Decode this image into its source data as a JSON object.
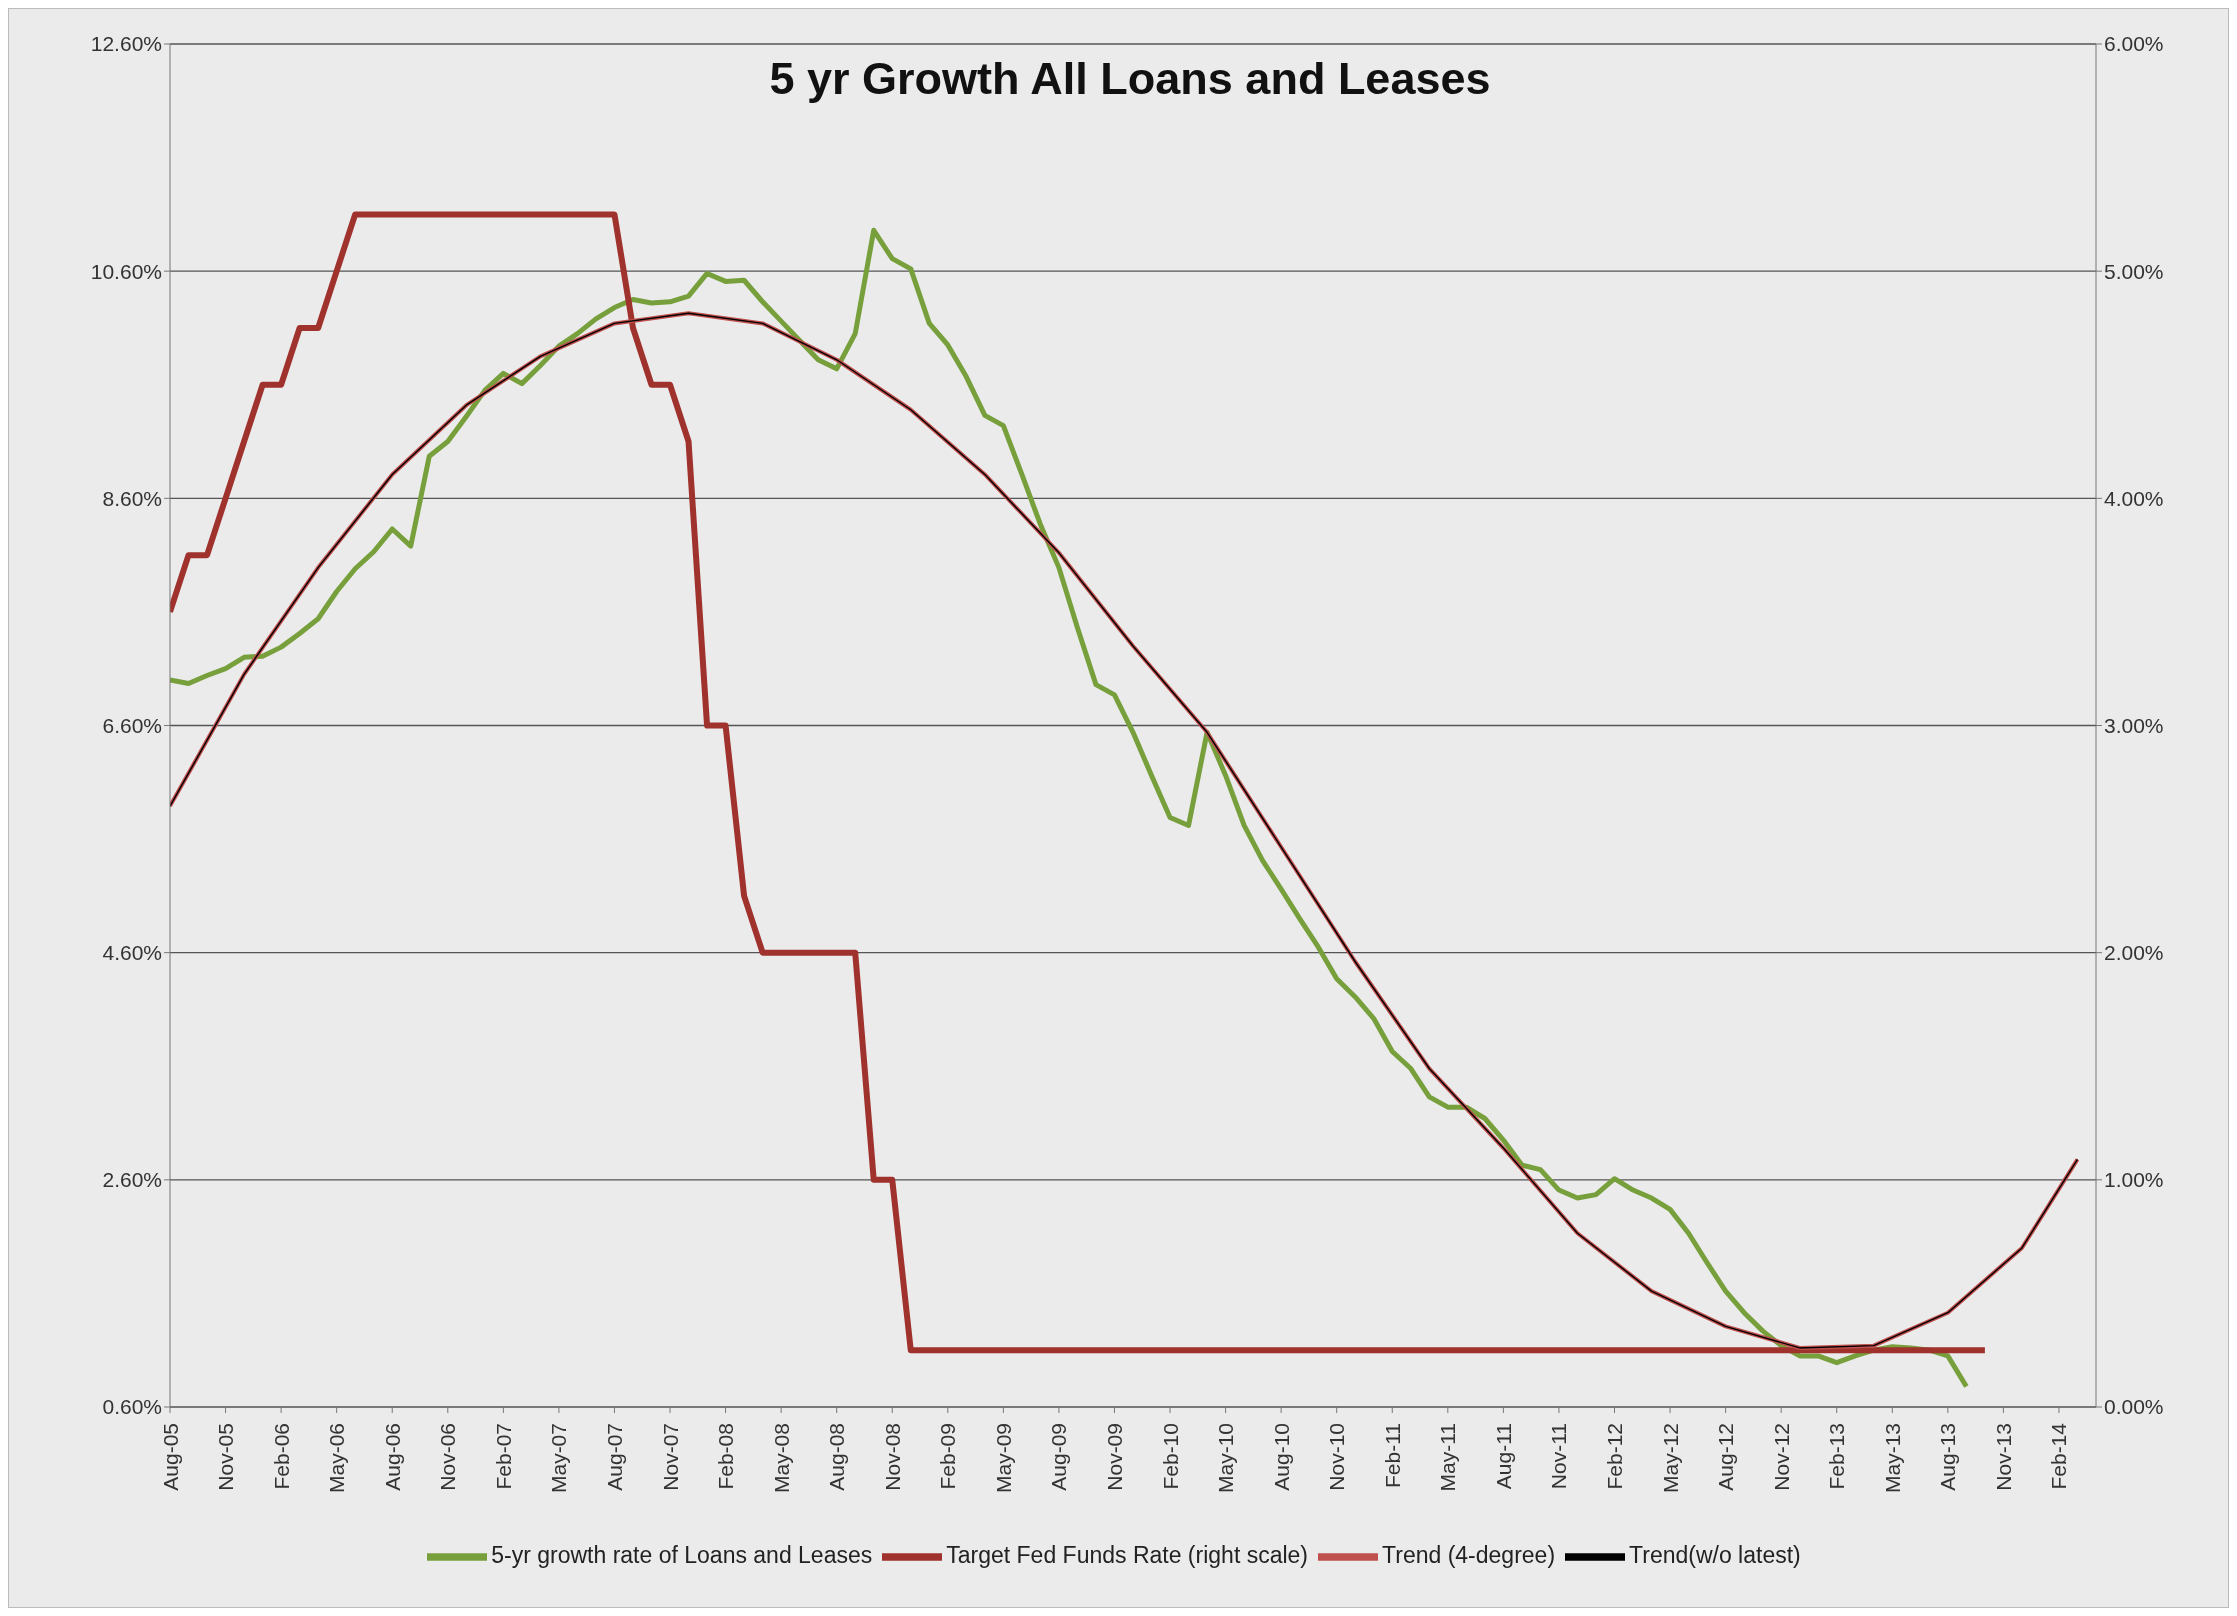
{
  "chart_data": {
    "type": "line",
    "title": "5 yr Growth All Loans and Leases",
    "xlim": [
      "2005-08",
      "2014-04"
    ],
    "xticks": [
      {
        "value": "2005-08",
        "label": "Aug-05"
      },
      {
        "value": "2005-11",
        "label": "Nov-05"
      },
      {
        "value": "2006-02",
        "label": "Feb-06"
      },
      {
        "value": "2006-05",
        "label": "May-06"
      },
      {
        "value": "2006-08",
        "label": "Aug-06"
      },
      {
        "value": "2006-11",
        "label": "Nov-06"
      },
      {
        "value": "2007-02",
        "label": "Feb-07"
      },
      {
        "value": "2007-05",
        "label": "May-07"
      },
      {
        "value": "2007-08",
        "label": "Aug-07"
      },
      {
        "value": "2007-11",
        "label": "Nov-07"
      },
      {
        "value": "2008-02",
        "label": "Feb-08"
      },
      {
        "value": "2008-05",
        "label": "May-08"
      },
      {
        "value": "2008-08",
        "label": "Aug-08"
      },
      {
        "value": "2008-11",
        "label": "Nov-08"
      },
      {
        "value": "2009-02",
        "label": "Feb-09"
      },
      {
        "value": "2009-05",
        "label": "May-09"
      },
      {
        "value": "2009-08",
        "label": "Aug-09"
      },
      {
        "value": "2009-11",
        "label": "Nov-09"
      },
      {
        "value": "2010-02",
        "label": "Feb-10"
      },
      {
        "value": "2010-05",
        "label": "May-10"
      },
      {
        "value": "2010-08",
        "label": "Aug-10"
      },
      {
        "value": "2010-11",
        "label": "Nov-10"
      },
      {
        "value": "2011-02",
        "label": "Feb-11"
      },
      {
        "value": "2011-05",
        "label": "May-11"
      },
      {
        "value": "2011-08",
        "label": "Aug-11"
      },
      {
        "value": "2011-11",
        "label": "Nov-11"
      },
      {
        "value": "2012-02",
        "label": "Feb-12"
      },
      {
        "value": "2012-05",
        "label": "May-12"
      },
      {
        "value": "2012-08",
        "label": "Aug-12"
      },
      {
        "value": "2012-11",
        "label": "Nov-12"
      },
      {
        "value": "2013-02",
        "label": "Feb-13"
      },
      {
        "value": "2013-05",
        "label": "May-13"
      },
      {
        "value": "2013-08",
        "label": "Aug-13"
      },
      {
        "value": "2013-11",
        "label": "Nov-13"
      },
      {
        "value": "2014-02",
        "label": "Feb-14"
      }
    ],
    "ylim": [
      0.6,
      12.6
    ],
    "yticks": [
      {
        "value": 0.6,
        "label": "0.60%"
      },
      {
        "value": 2.6,
        "label": "2.60%"
      },
      {
        "value": 4.6,
        "label": "4.60%"
      },
      {
        "value": 6.6,
        "label": "6.60%"
      },
      {
        "value": 8.6,
        "label": "8.60%"
      },
      {
        "value": 10.6,
        "label": "10.60%"
      },
      {
        "value": 12.6,
        "label": "12.60%"
      }
    ],
    "y2lim": [
      0,
      6
    ],
    "y2ticks": [
      {
        "value": 0,
        "label": "0.00%"
      },
      {
        "value": 1,
        "label": "1.00%"
      },
      {
        "value": 2,
        "label": "2.00%"
      },
      {
        "value": 3,
        "label": "3.00%"
      },
      {
        "value": 4,
        "label": "4.00%"
      },
      {
        "value": 5,
        "label": "5.00%"
      },
      {
        "value": 6,
        "label": "6.00%"
      }
    ],
    "grid": "y",
    "legend": "bottom",
    "series": [
      {
        "name": "5-yr growth rate of Loans and Leases",
        "color": "#77a03c",
        "x": [
          "2005-08",
          "2005-09",
          "2005-10",
          "2005-11",
          "2005-12",
          "2006-01",
          "2006-02",
          "2006-03",
          "2006-04",
          "2006-05",
          "2006-06",
          "2006-07",
          "2006-08",
          "2006-09",
          "2006-10",
          "2006-11",
          "2006-12",
          "2007-01",
          "2007-02",
          "2007-03",
          "2007-04",
          "2007-05",
          "2007-06",
          "2007-07",
          "2007-08",
          "2007-09",
          "2007-10",
          "2007-11",
          "2007-12",
          "2008-01",
          "2008-02",
          "2008-03",
          "2008-04",
          "2008-05",
          "2008-06",
          "2008-07",
          "2008-08",
          "2008-09",
          "2008-10",
          "2008-11",
          "2008-12",
          "2009-01",
          "2009-02",
          "2009-03",
          "2009-04",
          "2009-05",
          "2009-06",
          "2009-07",
          "2009-08",
          "2009-09",
          "2009-10",
          "2009-11",
          "2009-12",
          "2010-01",
          "2010-02",
          "2010-03",
          "2010-04",
          "2010-05",
          "2010-06",
          "2010-07",
          "2010-08",
          "2010-09",
          "2010-10",
          "2010-11",
          "2010-12",
          "2011-01",
          "2011-02",
          "2011-03",
          "2011-04",
          "2011-05",
          "2011-06",
          "2011-07",
          "2011-08",
          "2011-09",
          "2011-10",
          "2011-11",
          "2011-12",
          "2012-01",
          "2012-02",
          "2012-03",
          "2012-04",
          "2012-05",
          "2012-06",
          "2012-07",
          "2012-08",
          "2012-09",
          "2012-10",
          "2012-11",
          "2012-12",
          "2013-01",
          "2013-02",
          "2013-03",
          "2013-04",
          "2013-05",
          "2013-06",
          "2013-07",
          "2013-08",
          "2013-09"
        ],
        "values": [
          7.0,
          6.97,
          7.04,
          7.1,
          7.2,
          7.21,
          7.29,
          7.41,
          7.54,
          7.78,
          7.98,
          8.13,
          8.33,
          8.18,
          8.97,
          9.1,
          9.32,
          9.55,
          9.7,
          9.61,
          9.77,
          9.94,
          10.05,
          10.18,
          10.28,
          10.35,
          10.32,
          10.33,
          10.38,
          10.58,
          10.51,
          10.52,
          10.33,
          10.16,
          9.99,
          9.82,
          9.74,
          10.05,
          10.96,
          10.71,
          10.62,
          10.14,
          9.95,
          9.67,
          9.33,
          9.24,
          8.81,
          8.37,
          7.99,
          7.46,
          6.96,
          6.87,
          6.54,
          6.16,
          5.79,
          5.72,
          6.54,
          6.16,
          5.72,
          5.41,
          5.16,
          4.9,
          4.65,
          4.37,
          4.21,
          4.02,
          3.73,
          3.58,
          3.33,
          3.24,
          3.24,
          3.14,
          2.95,
          2.73,
          2.69,
          2.51,
          2.44,
          2.47,
          2.61,
          2.51,
          2.44,
          2.34,
          2.13,
          1.87,
          1.62,
          1.43,
          1.27,
          1.14,
          1.05,
          1.05,
          0.99,
          1.05,
          1.1,
          1.13,
          1.12,
          1.1,
          1.05,
          0.78
        ]
      },
      {
        "name": "Target Fed Funds Rate (right scale)",
        "color": "#a0322d",
        "axis": "y2",
        "x": [
          "2005-08",
          "2005-09",
          "2005-10",
          "2005-11",
          "2005-12",
          "2006-01",
          "2006-02",
          "2006-03",
          "2006-04",
          "2006-05",
          "2006-06",
          "2007-08",
          "2007-09",
          "2007-10",
          "2007-11",
          "2007-12",
          "2008-01",
          "2008-02",
          "2008-03",
          "2008-04",
          "2008-09",
          "2008-10",
          "2008-11",
          "2008-12",
          "2013-10"
        ],
        "values": [
          3.5,
          3.75,
          3.75,
          4.0,
          4.25,
          4.5,
          4.5,
          4.75,
          4.75,
          5.0,
          5.25,
          5.25,
          4.75,
          4.5,
          4.5,
          4.25,
          3.0,
          3.0,
          2.25,
          2.0,
          2.0,
          1.0,
          1.0,
          0.25,
          0.25
        ]
      },
      {
        "name": "Trend (4-degree)",
        "color": "#c0504d",
        "x": [
          "2005-08",
          "2005-12",
          "2006-04",
          "2006-08",
          "2006-12",
          "2007-04",
          "2007-08",
          "2007-12",
          "2008-04",
          "2008-08",
          "2008-12",
          "2009-04",
          "2009-08",
          "2009-12",
          "2010-04",
          "2010-08",
          "2010-12",
          "2011-04",
          "2011-08",
          "2011-12",
          "2012-04",
          "2012-08",
          "2012-12",
          "2013-04",
          "2013-08",
          "2013-12",
          "2014-03"
        ],
        "values": [
          5.89,
          7.05,
          7.99,
          8.81,
          9.42,
          9.85,
          10.14,
          10.23,
          10.14,
          9.82,
          9.38,
          8.81,
          8.12,
          7.3,
          6.54,
          5.53,
          4.52,
          3.58,
          2.88,
          2.13,
          1.62,
          1.31,
          1.12,
          1.14,
          1.43,
          2.0,
          2.78
        ]
      },
      {
        "name": "Trend(w/o latest)",
        "color": "#000000",
        "x": [
          "2005-08",
          "2005-12",
          "2006-04",
          "2006-08",
          "2006-12",
          "2007-04",
          "2007-08",
          "2007-12",
          "2008-04",
          "2008-08",
          "2008-12",
          "2009-04",
          "2009-08",
          "2009-12",
          "2010-04",
          "2010-08",
          "2010-12",
          "2011-04",
          "2011-08",
          "2011-12",
          "2012-04",
          "2012-08",
          "2012-12",
          "2013-04",
          "2013-08",
          "2013-12",
          "2014-03"
        ],
        "values": [
          5.89,
          7.05,
          7.99,
          8.81,
          9.42,
          9.85,
          10.14,
          10.23,
          10.14,
          9.82,
          9.38,
          8.81,
          8.12,
          7.3,
          6.54,
          5.53,
          4.52,
          3.58,
          2.88,
          2.13,
          1.62,
          1.31,
          1.12,
          1.14,
          1.43,
          2.0,
          2.78
        ]
      }
    ]
  }
}
